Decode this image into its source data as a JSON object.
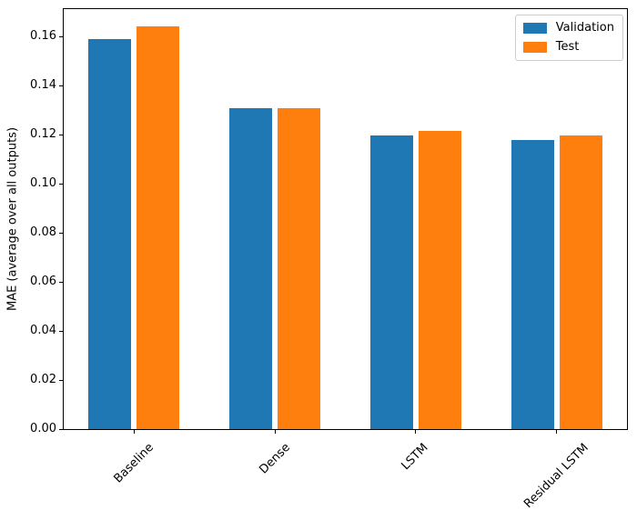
{
  "chart_data": {
    "type": "bar",
    "title": "",
    "xlabel": "",
    "ylabel": "MAE (average over all outputs)",
    "categories": [
      "Baseline",
      "Dense",
      "LSTM",
      "Residual LSTM"
    ],
    "series": [
      {
        "name": "Validation",
        "color": "#1f77b4",
        "values": [
          0.159,
          0.1309,
          0.1195,
          0.1178
        ]
      },
      {
        "name": "Test",
        "color": "#ff7f0e",
        "values": [
          0.164,
          0.1306,
          0.1215,
          0.1196
        ]
      }
    ],
    "ylim": [
      0,
      0.1711
    ],
    "yticks": [
      0.0,
      0.02,
      0.04,
      0.06,
      0.08,
      0.1,
      0.12,
      0.14,
      0.16
    ],
    "ytick_labels": [
      "0.00",
      "0.02",
      "0.04",
      "0.06",
      "0.08",
      "0.10",
      "0.12",
      "0.14",
      "0.16"
    ],
    "xtick_rotation": 45,
    "grid": false,
    "legend_position": "upper right"
  }
}
